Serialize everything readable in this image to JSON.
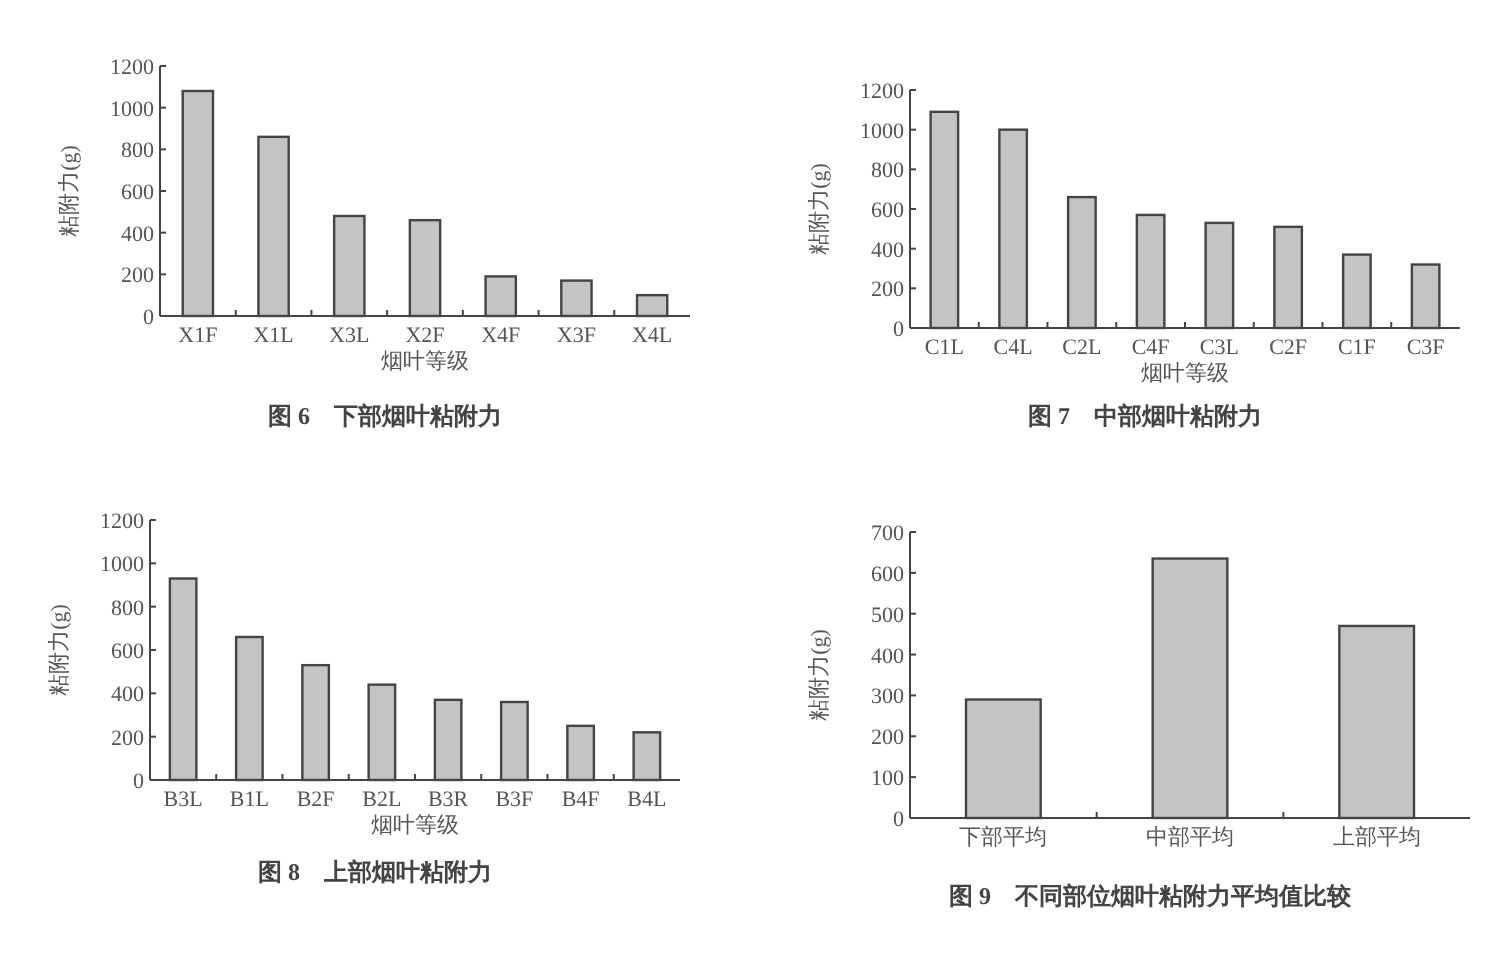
{
  "chart_data": [
    {
      "type": "bar",
      "title": "图 6　下部烟叶粘附力",
      "xlabel": "烟叶等级",
      "ylabel": "粘附力(g)",
      "categories": [
        "X1F",
        "X1L",
        "X3L",
        "X2F",
        "X4F",
        "X3F",
        "X4L"
      ],
      "values": [
        1080,
        860,
        480,
        460,
        190,
        170,
        100
      ],
      "color": "#c4c4c4",
      "ylim": [
        0,
        1200
      ],
      "yticks": [
        0,
        200,
        400,
        600,
        800,
        1000,
        1200
      ],
      "grid": false
    },
    {
      "type": "bar",
      "title": "图 7　中部烟叶粘附力",
      "xlabel": "烟叶等级",
      "ylabel": "粘附力(g)",
      "categories": [
        "C1L",
        "C4L",
        "C2L",
        "C4F",
        "C3L",
        "C2F",
        "C1F",
        "C3F"
      ],
      "values": [
        1090,
        1000,
        660,
        570,
        530,
        510,
        370,
        320
      ],
      "color": "#c4c4c4",
      "ylim": [
        0,
        1200
      ],
      "yticks": [
        0,
        200,
        400,
        600,
        800,
        1000,
        1200
      ],
      "grid": false
    },
    {
      "type": "bar",
      "title": "图 8　上部烟叶粘附力",
      "xlabel": "烟叶等级",
      "ylabel": "粘附力(g)",
      "categories": [
        "B3L",
        "B1L",
        "B2F",
        "B2L",
        "B3R",
        "B3F",
        "B4F",
        "B4L"
      ],
      "values": [
        930,
        660,
        530,
        440,
        370,
        360,
        250,
        220
      ],
      "color": "#c4c4c4",
      "ylim": [
        0,
        1200
      ],
      "yticks": [
        0,
        200,
        400,
        600,
        800,
        1000,
        1200
      ],
      "grid": false
    },
    {
      "type": "bar",
      "title": "图 9　不同部位烟叶粘附力平均值比较",
      "ylabel": "粘附力(g)",
      "categories": [
        "下部平均",
        "中部平均",
        "上部平均"
      ],
      "values": [
        290,
        635,
        470
      ],
      "color": "#c4c4c4",
      "ylim": [
        0,
        700
      ],
      "yticks": [
        0,
        100,
        200,
        300,
        400,
        500,
        600,
        700
      ],
      "grid": false
    }
  ]
}
